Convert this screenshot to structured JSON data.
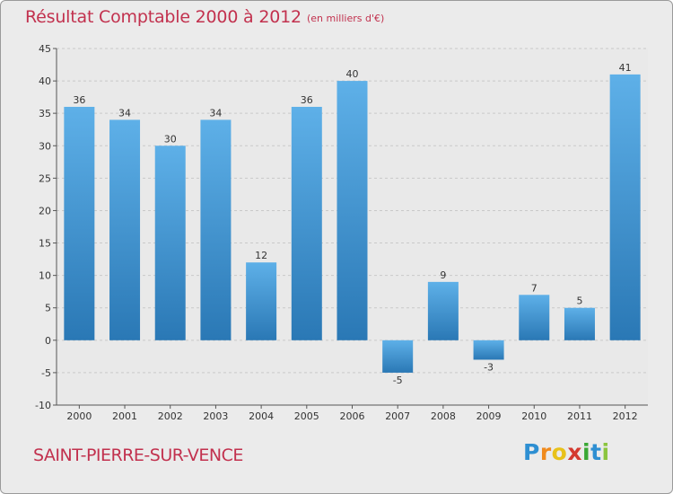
{
  "title": "Résultat Comptable 2000 à 2012",
  "subtitle": "(en milliers d'€)",
  "commune": "SAINT-PIERRE-SUR-VENCE",
  "logo": {
    "letters": [
      "P",
      "r",
      "o",
      "x",
      "i",
      "t",
      "i"
    ],
    "colors": [
      "#2e8fd2",
      "#f08a1c",
      "#e8c21a",
      "#d43a2f",
      "#3aa835",
      "#2e8fd2",
      "#8bc53f"
    ]
  },
  "colors": {
    "bar_top": "#5eb0e8",
    "bar_bottom": "#2a78b5",
    "text_accent": "#c2314e",
    "background": "#ebebeb"
  },
  "chart_data": {
    "type": "bar",
    "categories": [
      "2000",
      "2001",
      "2002",
      "2003",
      "2004",
      "2005",
      "2006",
      "2007",
      "2008",
      "2009",
      "2010",
      "2011",
      "2012"
    ],
    "values": [
      36,
      34,
      30,
      34,
      12,
      36,
      40,
      -5,
      9,
      -3,
      7,
      5,
      41
    ],
    "title": "Résultat Comptable 2000 à 2012",
    "subtitle": "(en milliers d'€)",
    "xlabel": "",
    "ylabel": "",
    "ylim": [
      -10,
      45
    ],
    "yticks": [
      -10,
      -5,
      0,
      5,
      10,
      15,
      20,
      25,
      30,
      35,
      40,
      45
    ],
    "grid": true,
    "data_labels": true
  }
}
